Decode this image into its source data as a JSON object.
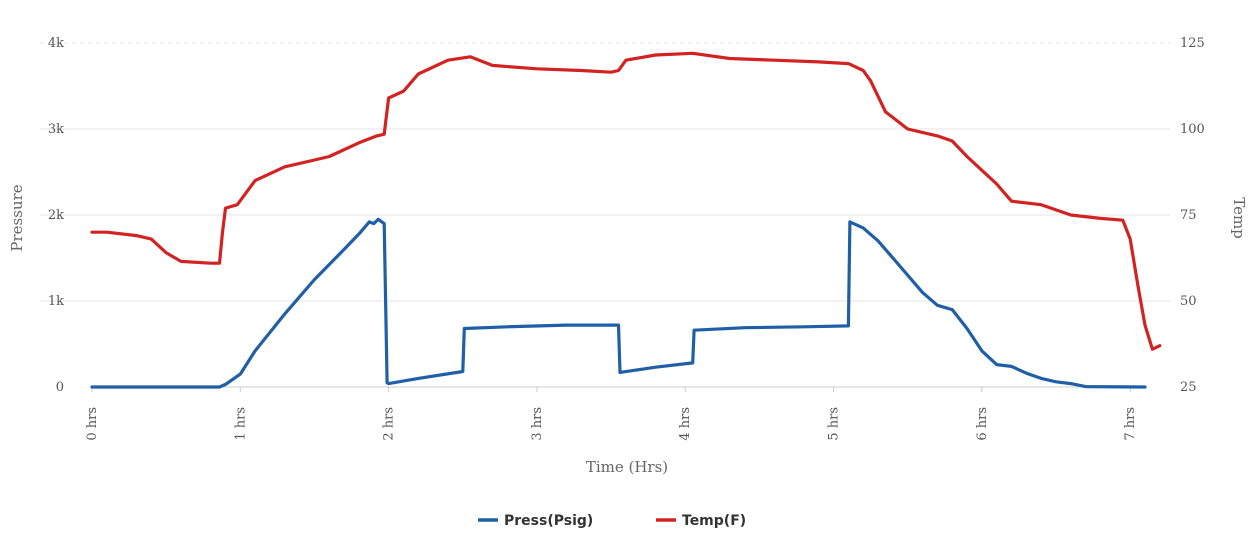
{
  "chart_data": {
    "type": "line",
    "title": "",
    "xlabel": "Time (Hrs)",
    "ylabel_left": "Pressure",
    "ylabel_right": "Temp",
    "xlim": [
      0,
      7.1
    ],
    "ylim_left": [
      0,
      4000
    ],
    "ylim_right": [
      25,
      125
    ],
    "grid": "horizontal",
    "legend_position": "bottom-center",
    "x_ticks": [
      {
        "value": 0,
        "label": "0 hrs"
      },
      {
        "value": 1,
        "label": "1 hrs"
      },
      {
        "value": 2,
        "label": "2 hrs"
      },
      {
        "value": 3,
        "label": "3 hrs"
      },
      {
        "value": 4,
        "label": "4 hrs"
      },
      {
        "value": 5,
        "label": "5 hrs"
      },
      {
        "value": 6,
        "label": "6 hrs"
      },
      {
        "value": 7,
        "label": "7 hrs"
      }
    ],
    "y_ticks_left": [
      {
        "value": 0,
        "label": "0"
      },
      {
        "value": 1000,
        "label": "1k"
      },
      {
        "value": 2000,
        "label": "2k"
      },
      {
        "value": 3000,
        "label": "3k"
      },
      {
        "value": 4000,
        "label": "4k"
      }
    ],
    "y_ticks_right": [
      {
        "value": 25,
        "label": "25"
      },
      {
        "value": 50,
        "label": "50"
      },
      {
        "value": 75,
        "label": "75"
      },
      {
        "value": 100,
        "label": "100"
      },
      {
        "value": 125,
        "label": "125"
      }
    ],
    "series": [
      {
        "name": "Press(Psig)",
        "color": "#1f5fa8",
        "axis": "left",
        "points": [
          [
            0,
            0
          ],
          [
            0.86,
            0
          ],
          [
            0.9,
            30
          ],
          [
            1.0,
            150
          ],
          [
            1.1,
            420
          ],
          [
            1.3,
            850
          ],
          [
            1.5,
            1250
          ],
          [
            1.7,
            1600
          ],
          [
            1.8,
            1780
          ],
          [
            1.87,
            1920
          ],
          [
            1.9,
            1900
          ],
          [
            1.93,
            1950
          ],
          [
            1.97,
            1900
          ],
          [
            1.99,
            50
          ],
          [
            2.0,
            40
          ],
          [
            2.2,
            100
          ],
          [
            2.5,
            180
          ],
          [
            2.51,
            680
          ],
          [
            2.8,
            700
          ],
          [
            3.2,
            720
          ],
          [
            3.55,
            720
          ],
          [
            3.56,
            170
          ],
          [
            3.8,
            230
          ],
          [
            4.05,
            280
          ],
          [
            4.06,
            660
          ],
          [
            4.4,
            690
          ],
          [
            4.8,
            700
          ],
          [
            5.1,
            710
          ],
          [
            5.11,
            1920
          ],
          [
            5.2,
            1850
          ],
          [
            5.3,
            1700
          ],
          [
            5.4,
            1500
          ],
          [
            5.6,
            1100
          ],
          [
            5.7,
            950
          ],
          [
            5.8,
            900
          ],
          [
            5.9,
            680
          ],
          [
            6.0,
            420
          ],
          [
            6.1,
            260
          ],
          [
            6.2,
            240
          ],
          [
            6.3,
            160
          ],
          [
            6.4,
            100
          ],
          [
            6.5,
            60
          ],
          [
            6.6,
            40
          ],
          [
            6.7,
            5
          ],
          [
            7.1,
            0
          ]
        ]
      },
      {
        "name": "Temp(F)",
        "color": "#d32222",
        "axis": "right",
        "points": [
          [
            0,
            70
          ],
          [
            0.1,
            70
          ],
          [
            0.3,
            69
          ],
          [
            0.4,
            68
          ],
          [
            0.5,
            64
          ],
          [
            0.6,
            61.5
          ],
          [
            0.8,
            61
          ],
          [
            0.86,
            61
          ],
          [
            0.88,
            70
          ],
          [
            0.9,
            77
          ],
          [
            0.98,
            78
          ],
          [
            1.1,
            85
          ],
          [
            1.3,
            89
          ],
          [
            1.5,
            91
          ],
          [
            1.6,
            92
          ],
          [
            1.8,
            96
          ],
          [
            1.92,
            98
          ],
          [
            1.97,
            98.5
          ],
          [
            2.0,
            109
          ],
          [
            2.1,
            111
          ],
          [
            2.2,
            116
          ],
          [
            2.4,
            120
          ],
          [
            2.55,
            121
          ],
          [
            2.7,
            118.5
          ],
          [
            3.0,
            117.5
          ],
          [
            3.3,
            117
          ],
          [
            3.5,
            116.5
          ],
          [
            3.55,
            117
          ],
          [
            3.6,
            120
          ],
          [
            3.8,
            121.5
          ],
          [
            4.05,
            122
          ],
          [
            4.3,
            120.5
          ],
          [
            4.6,
            120
          ],
          [
            4.9,
            119.5
          ],
          [
            5.1,
            119
          ],
          [
            5.2,
            117
          ],
          [
            5.25,
            114
          ],
          [
            5.35,
            105
          ],
          [
            5.5,
            100
          ],
          [
            5.7,
            98
          ],
          [
            5.8,
            96.5
          ],
          [
            5.9,
            92
          ],
          [
            6.0,
            88
          ],
          [
            6.1,
            84
          ],
          [
            6.2,
            79
          ],
          [
            6.4,
            78
          ],
          [
            6.6,
            75
          ],
          [
            6.8,
            74
          ],
          [
            6.95,
            73.5
          ],
          [
            7.0,
            68
          ],
          [
            7.05,
            55
          ],
          [
            7.1,
            43
          ],
          [
            7.15,
            36
          ],
          [
            7.2,
            37
          ]
        ]
      }
    ]
  }
}
